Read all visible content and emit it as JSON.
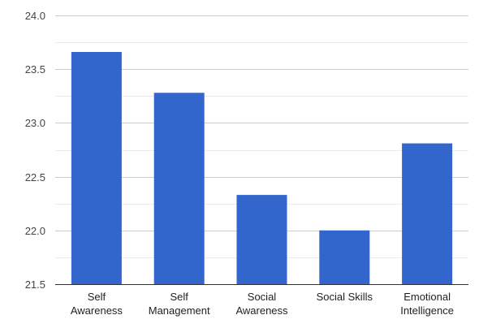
{
  "chart_data": {
    "type": "bar",
    "title": "",
    "xlabel": "",
    "ylabel": "",
    "categories": [
      [
        "Self",
        "Awareness"
      ],
      [
        "Self",
        "Management"
      ],
      [
        "Social",
        "Awareness"
      ],
      [
        "Social Skills"
      ],
      [
        "Emotional",
        "Intelligence"
      ]
    ],
    "values": [
      23.66,
      23.28,
      22.33,
      22.0,
      22.81
    ],
    "ylim": [
      21.5,
      24.0
    ],
    "yticks": [
      21.5,
      22.0,
      22.5,
      23.0,
      23.5,
      24.0
    ],
    "ytick_labels": [
      "21.5",
      "22.0",
      "22.5",
      "23.0",
      "23.5",
      "24.0"
    ],
    "minor_gridlines": true,
    "legend": "none",
    "colors": {
      "bar": "#3366cc",
      "grid": "#cccccc",
      "minor_grid": "#ebebeb",
      "axis": "#333333"
    }
  }
}
